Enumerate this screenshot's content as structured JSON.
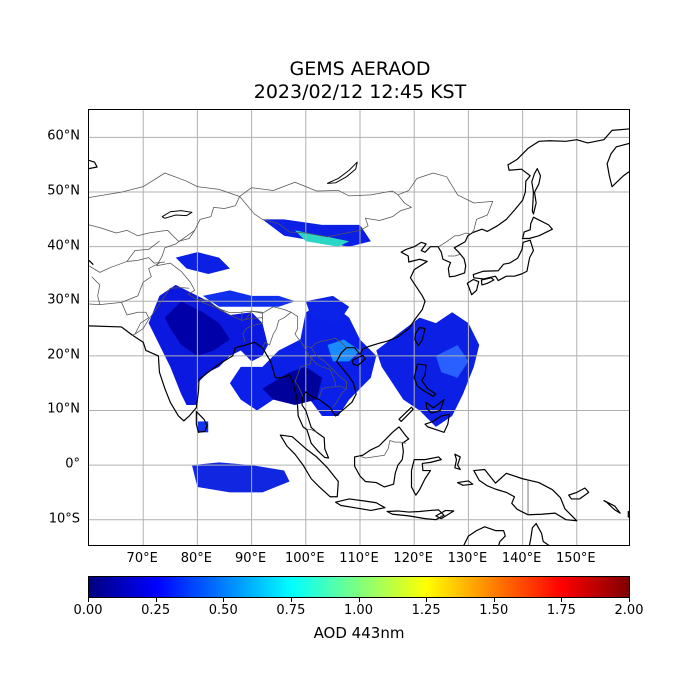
{
  "title_line1": "GEMS AERAOD",
  "title_line2": "2023/02/12 12:45 KST",
  "map": {
    "lon_range": [
      60,
      160
    ],
    "lat_range": [
      -15,
      65
    ],
    "lat_ticks": [
      {
        "value": 60,
        "label": "60°N"
      },
      {
        "value": 50,
        "label": "50°N"
      },
      {
        "value": 40,
        "label": "40°N"
      },
      {
        "value": 30,
        "label": "30°N"
      },
      {
        "value": 20,
        "label": "20°N"
      },
      {
        "value": 10,
        "label": "10°N"
      },
      {
        "value": 0,
        "label": "0°"
      },
      {
        "value": -10,
        "label": "10°S"
      }
    ],
    "lon_ticks": [
      {
        "value": 70,
        "label": "70°E"
      },
      {
        "value": 80,
        "label": "80°E"
      },
      {
        "value": 90,
        "label": "90°E"
      },
      {
        "value": 100,
        "label": "100°E"
      },
      {
        "value": 110,
        "label": "110°E"
      },
      {
        "value": 120,
        "label": "120°E"
      },
      {
        "value": 130,
        "label": "130°E"
      },
      {
        "value": 140,
        "label": "140°E"
      },
      {
        "value": 150,
        "label": "150°E"
      }
    ],
    "grid": true,
    "gridline_color": "#b0b0b0",
    "coast_color": "#000000",
    "border_color": "#555555"
  },
  "colorbar": {
    "label": "AOD 443nm",
    "range": [
      0,
      2
    ],
    "ticks": [
      {
        "value": 0,
        "label": "0.00"
      },
      {
        "value": 0.25,
        "label": "0.25"
      },
      {
        "value": 0.5,
        "label": "0.50"
      },
      {
        "value": 0.75,
        "label": "0.75"
      },
      {
        "value": 1.0,
        "label": "1.00"
      },
      {
        "value": 1.25,
        "label": "1.25"
      },
      {
        "value": 1.5,
        "label": "1.50"
      },
      {
        "value": 1.75,
        "label": "1.75"
      },
      {
        "value": 2.0,
        "label": "2.00"
      }
    ],
    "colormap": "jet"
  }
}
